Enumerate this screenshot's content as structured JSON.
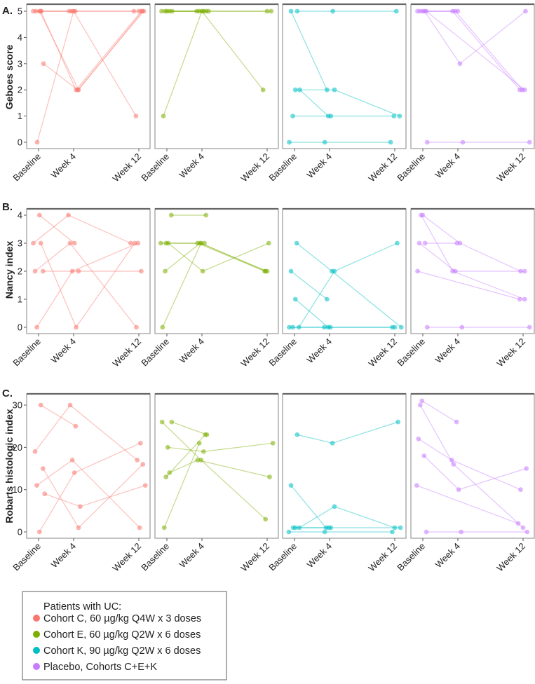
{
  "x_tick_labels": [
    "Baseline",
    "Week 4",
    "Week 12"
  ],
  "x_tick_values": [
    0,
    4,
    12
  ],
  "chart_data": [
    {
      "type": "line",
      "panel_label": "A.",
      "ylabel": "Geboes score",
      "ylim": [
        0,
        5
      ],
      "yticks": [
        0,
        1,
        2,
        3,
        4,
        5
      ],
      "xticks": [
        "Baseline",
        "Week 4",
        "Week 12"
      ],
      "grid": false,
      "series": [
        {
          "name": "Cohort C",
          "trajectories": [
            [
              [
                -0.6,
                5
              ],
              [
                3.5,
                5
              ],
              [
                11.4,
                5
              ]
            ],
            [
              [
                -0.3,
                5
              ],
              [
                3.8,
                5
              ],
              [
                12.0,
                5
              ]
            ],
            [
              [
                0.25,
                5
              ],
              [
                4.3,
                2
              ],
              [
                12.3,
                5
              ]
            ],
            [
              [
                0.56,
                3
              ],
              [
                4.5,
                2
              ],
              [
                12.6,
                5
              ]
            ],
            [
              [
                -0.16,
                0
              ],
              [
                4.0,
                5
              ],
              [
                11.65,
                1
              ]
            ],
            [
              [
                0.1,
                5
              ],
              [
                4.6,
                2
              ],
              [
                12.45,
                5
              ]
            ],
            [
              [
                0.3,
                5
              ],
              [
                4.2,
                5
              ]
            ]
          ]
        },
        {
          "name": "Cohort E",
          "trajectories": [
            [
              [
                -0.4,
                1
              ],
              [
                4.0,
                5
              ],
              [
                11.5,
                2
              ]
            ],
            [
              [
                -0.6,
                5
              ],
              [
                3.4,
                5
              ],
              [
                12.0,
                5
              ]
            ],
            [
              [
                -0.2,
                5
              ],
              [
                3.7,
                5
              ],
              [
                12.5,
                5
              ]
            ],
            [
              [
                0.0,
                5
              ],
              [
                4.2,
                5
              ]
            ],
            [
              [
                0.3,
                5
              ],
              [
                4.5,
                5
              ]
            ],
            [
              [
                0.6,
                5
              ],
              [
                4.8,
                5
              ]
            ]
          ]
        },
        {
          "name": "Cohort K",
          "trajectories": [
            [
              [
                -0.4,
                5
              ],
              [
                3.7,
                2
              ]
            ],
            [
              [
                0.3,
                5
              ],
              [
                4.4,
                5
              ],
              [
                12.2,
                5
              ]
            ],
            [
              [
                0.1,
                2
              ],
              [
                4.6,
                2
              ],
              [
                12.6,
                1
              ]
            ],
            [
              [
                0.6,
                2
              ],
              [
                3.85,
                1
              ]
            ],
            [
              [
                -0.2,
                1
              ],
              [
                4.15,
                1
              ],
              [
                11.9,
                1
              ]
            ],
            [
              [
                -0.6,
                0
              ],
              [
                3.45,
                0
              ],
              [
                11.5,
                0
              ]
            ]
          ]
        },
        {
          "name": "Placebo",
          "trajectories": [
            [
              [
                -0.6,
                5
              ],
              [
                3.4,
                5
              ],
              [
                11.6,
                2
              ]
            ],
            [
              [
                -0.3,
                5
              ],
              [
                3.7,
                5
              ],
              [
                11.9,
                2
              ]
            ],
            [
              [
                0.0,
                5
              ],
              [
                4.0,
                5
              ]
            ],
            [
              [
                0.2,
                5
              ],
              [
                4.25,
                3
              ],
              [
                12.3,
                5
              ]
            ],
            [
              [
                0.4,
                5
              ],
              [
                12.2,
                2
              ]
            ],
            [
              [
                0.5,
                0
              ],
              [
                4.6,
                0
              ],
              [
                12.8,
                0
              ]
            ]
          ]
        }
      ]
    },
    {
      "type": "line",
      "panel_label": "B.",
      "ylabel": "Nancy index",
      "ylim": [
        0,
        4
      ],
      "yticks": [
        0,
        1,
        2,
        3,
        4
      ],
      "xticks": [
        "Baseline",
        "Week 4",
        "Week 12"
      ],
      "grid": false,
      "series": [
        {
          "name": "Cohort C",
          "trajectories": [
            [
              [
                -0.6,
                3
              ],
              [
                3.4,
                4
              ],
              [
                11.0,
                3
              ]
            ],
            [
              [
                0.1,
                4
              ],
              [
                4.1,
                3
              ]
            ],
            [
              [
                -0.4,
                2
              ],
              [
                3.6,
                3
              ],
              [
                11.7,
                0
              ]
            ],
            [
              [
                0.25,
                3
              ],
              [
                4.3,
                0
              ],
              [
                11.5,
                3
              ]
            ],
            [
              [
                -0.2,
                0
              ],
              [
                3.85,
                2
              ],
              [
                11.9,
                3
              ]
            ],
            [
              [
                0.5,
                2
              ],
              [
                4.6,
                2
              ],
              [
                12.3,
                2
              ]
            ]
          ]
        },
        {
          "name": "Cohort E",
          "trajectories": [
            [
              [
                0.5,
                4
              ],
              [
                4.5,
                4
              ]
            ],
            [
              [
                -0.7,
                3
              ],
              [
                3.5,
                3
              ],
              [
                11.7,
                2
              ]
            ],
            [
              [
                0.15,
                3
              ],
              [
                4.1,
                2
              ],
              [
                12.2,
                3
              ]
            ],
            [
              [
                -0.2,
                2
              ],
              [
                3.8,
                3
              ],
              [
                12.0,
                2
              ]
            ],
            [
              [
                -0.5,
                0
              ],
              [
                3.9,
                3
              ],
              [
                11.8,
                2
              ]
            ],
            [
              [
                -0.1,
                3
              ],
              [
                4.3,
                3
              ]
            ]
          ]
        },
        {
          "name": "Cohort K",
          "trajectories": [
            [
              [
                0.25,
                3
              ],
              [
                4.3,
                2
              ],
              [
                12.8,
                0
              ]
            ],
            [
              [
                -0.4,
                2
              ],
              [
                3.7,
                1
              ]
            ],
            [
              [
                0.1,
                1
              ],
              [
                3.85,
                0
              ],
              [
                12.0,
                0
              ]
            ],
            [
              [
                0.5,
                0
              ],
              [
                4.6,
                2
              ],
              [
                12.3,
                3
              ]
            ],
            [
              [
                -0.6,
                0
              ],
              [
                3.4,
                0
              ],
              [
                11.7,
                0
              ]
            ],
            [
              [
                -0.2,
                0
              ],
              [
                4.1,
                0
              ]
            ]
          ]
        },
        {
          "name": "Placebo",
          "trajectories": [
            [
              [
                0.0,
                4
              ],
              [
                4.25,
                3
              ],
              [
                11.7,
                2
              ]
            ],
            [
              [
                -0.2,
                4
              ],
              [
                3.4,
                2
              ],
              [
                12.2,
                1
              ]
            ],
            [
              [
                -0.4,
                3
              ],
              [
                3.7,
                2
              ],
              [
                12.2,
                2
              ]
            ],
            [
              [
                0.25,
                3
              ],
              [
                3.9,
                3
              ]
            ],
            [
              [
                -0.6,
                2
              ],
              [
                11.6,
                1
              ]
            ],
            [
              [
                0.5,
                0
              ],
              [
                4.5,
                0
              ],
              [
                12.8,
                0
              ]
            ]
          ]
        }
      ]
    },
    {
      "type": "line",
      "panel_label": "C.",
      "ylabel": "Robarts histologic index",
      "ylim": [
        0,
        30
      ],
      "yticks": [
        0,
        10,
        20,
        30
      ],
      "xticks": [
        "Baseline",
        "Week 4",
        "Week 12"
      ],
      "grid": false,
      "series": [
        {
          "name": "Cohort C",
          "trajectories": [
            [
              [
                0.25,
                30
              ],
              [
                4.25,
                25
              ]
            ],
            [
              [
                -0.4,
                19
              ],
              [
                3.6,
                30
              ],
              [
                11.8,
                17
              ]
            ],
            [
              [
                -0.2,
                11
              ],
              [
                3.85,
                17
              ],
              [
                12.1,
                1
              ]
            ],
            [
              [
                0.5,
                15
              ],
              [
                4.6,
                1
              ],
              [
                12.5,
                16
              ]
            ],
            [
              [
                0.7,
                9
              ],
              [
                4.8,
                6
              ],
              [
                12.8,
                11
              ]
            ],
            [
              [
                0.1,
                0
              ],
              [
                4.1,
                14
              ],
              [
                12.2,
                21
              ]
            ]
          ]
        },
        {
          "name": "Cohort E",
          "trajectories": [
            [
              [
                0.55,
                26
              ],
              [
                4.6,
                23
              ]
            ],
            [
              [
                -0.55,
                26
              ],
              [
                3.9,
                17
              ],
              [
                11.8,
                3
              ]
            ],
            [
              [
                0.1,
                20
              ],
              [
                4.2,
                19
              ],
              [
                12.7,
                21
              ]
            ],
            [
              [
                -0.1,
                13
              ],
              [
                4.4,
                23
              ]
            ],
            [
              [
                0.3,
                14
              ],
              [
                3.5,
                17
              ],
              [
                12.3,
                13
              ]
            ],
            [
              [
                -0.3,
                1
              ],
              [
                3.7,
                21
              ]
            ]
          ]
        },
        {
          "name": "Cohort K",
          "trajectories": [
            [
              [
                0.3,
                23
              ],
              [
                4.35,
                21
              ],
              [
                12.4,
                26
              ]
            ],
            [
              [
                -0.4,
                11
              ],
              [
                3.6,
                1
              ]
            ],
            [
              [
                0.55,
                1
              ],
              [
                4.6,
                6
              ],
              [
                12.0,
                1
              ]
            ],
            [
              [
                0.1,
                1
              ],
              [
                4.15,
                1
              ],
              [
                12.7,
                1
              ]
            ],
            [
              [
                -0.15,
                1
              ],
              [
                3.9,
                1
              ]
            ],
            [
              [
                -0.65,
                0
              ],
              [
                3.45,
                0
              ],
              [
                11.7,
                0
              ]
            ]
          ]
        },
        {
          "name": "Placebo",
          "trajectories": [
            [
              [
                -0.1,
                31
              ],
              [
                3.85,
                26
              ]
            ],
            [
              [
                -0.3,
                30
              ],
              [
                3.5,
                16
              ],
              [
                12.0,
                1
              ]
            ],
            [
              [
                -0.5,
                22
              ],
              [
                3.3,
                17
              ],
              [
                11.7,
                10
              ]
            ],
            [
              [
                0.15,
                18
              ],
              [
                4.1,
                10
              ],
              [
                12.4,
                15
              ]
            ],
            [
              [
                -0.7,
                11
              ],
              [
                11.4,
                2
              ]
            ],
            [
              [
                0.4,
                0
              ],
              [
                4.4,
                0
              ],
              [
                12.5,
                0
              ]
            ]
          ]
        }
      ]
    }
  ],
  "legend": {
    "title": "Patients with UC:",
    "placement": "bottom-left",
    "items": [
      {
        "label": "Cohort C, 60 µg/kg Q4W x 3 doses",
        "color": "#F8766D"
      },
      {
        "label": "Cohort E, 60 µg/kg Q2W x 6 doses",
        "color": "#7CAE00"
      },
      {
        "label": "Cohort K, 90 µg/kg Q2W x 6 doses",
        "color": "#00BFC4"
      },
      {
        "label": "Placebo, Cohorts C+E+K",
        "color": "#C77CFF"
      }
    ]
  },
  "series_colors": [
    "#F8766D",
    "#7CAE00",
    "#00BFC4",
    "#C77CFF"
  ]
}
